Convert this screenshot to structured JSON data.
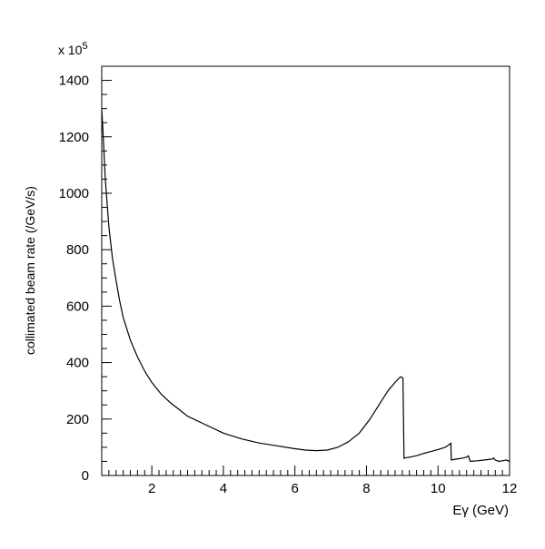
{
  "chart_data": {
    "type": "line",
    "title": "",
    "xlabel": "Eγ (GeV)",
    "ylabel": "collimated beam rate (/GeV/s)",
    "y_multiplier": "x 10",
    "y_multiplier_exp": "5",
    "xlim": [
      0.6,
      12
    ],
    "ylim": [
      0,
      1450
    ],
    "grid": false,
    "x_ticks": [
      2,
      4,
      6,
      8,
      10,
      12
    ],
    "y_ticks": [
      0,
      200,
      400,
      600,
      800,
      1000,
      1200,
      1400
    ],
    "series": [
      {
        "color": "#000000",
        "x": [
          0.6,
          0.65,
          0.7,
          0.8,
          0.9,
          1.0,
          1.1,
          1.2,
          1.4,
          1.6,
          1.8,
          2.0,
          2.25,
          2.5,
          2.75,
          3.0,
          3.5,
          4.0,
          4.5,
          5.0,
          5.5,
          6.0,
          6.3,
          6.6,
          6.9,
          7.2,
          7.5,
          7.8,
          8.1,
          8.4,
          8.6,
          8.8,
          8.95,
          9.02,
          9.05,
          9.06,
          9.2,
          9.4,
          9.6,
          9.8,
          10.0,
          10.2,
          10.3,
          10.36,
          10.37,
          10.5,
          10.7,
          10.8,
          10.85,
          10.9,
          11.1,
          11.3,
          11.5,
          11.55,
          11.6,
          11.7,
          11.8,
          11.9,
          12.0
        ],
        "y": [
          1300,
          1180,
          1050,
          880,
          770,
          690,
          620,
          560,
          480,
          420,
          370,
          330,
          290,
          260,
          235,
          210,
          180,
          150,
          130,
          115,
          105,
          95,
          90,
          88,
          90,
          100,
          120,
          150,
          200,
          260,
          300,
          330,
          350,
          345,
          60,
          62,
          65,
          70,
          78,
          85,
          92,
          100,
          108,
          115,
          55,
          58,
          62,
          65,
          70,
          50,
          52,
          55,
          58,
          62,
          55,
          50,
          52,
          55,
          50
        ]
      }
    ]
  }
}
